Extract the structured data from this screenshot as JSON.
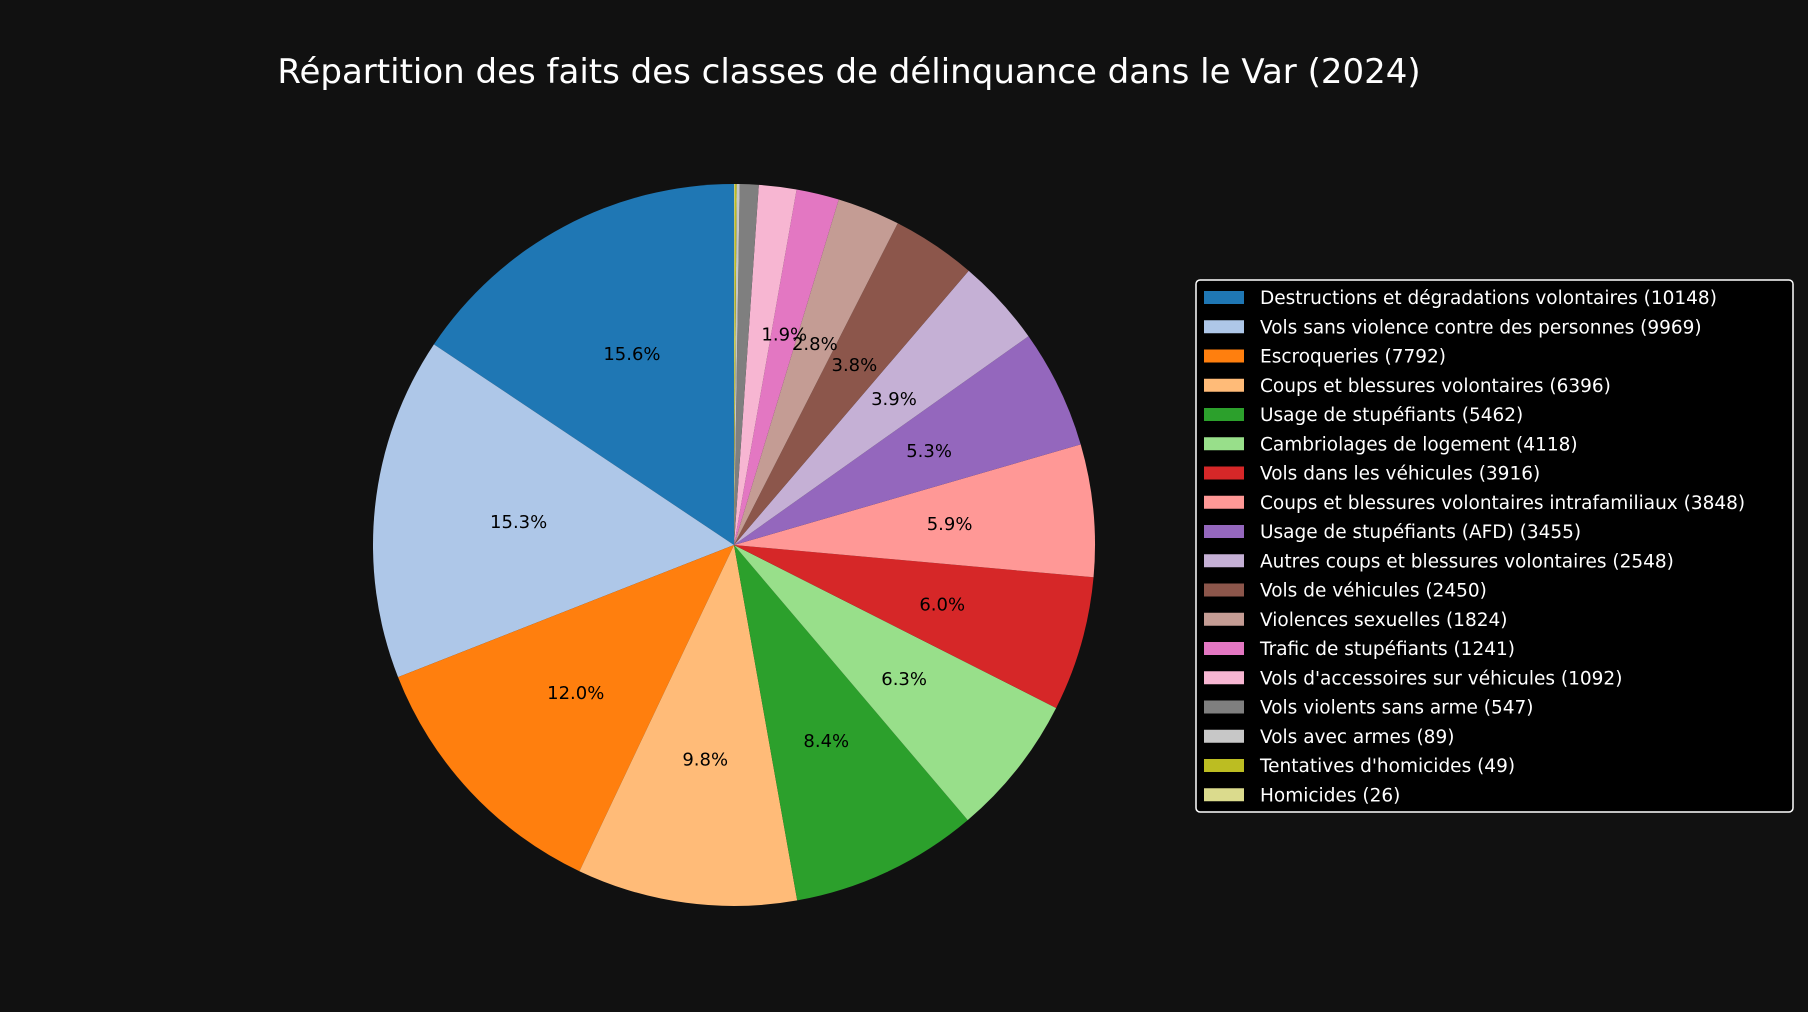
{
  "chart_data": {
    "type": "pie",
    "title": "Répartition des faits des classes de délinquance dans le Var (2024)",
    "start_angle_deg": 90,
    "direction": "counterclockwise",
    "pct_label_threshold_percent": 1.8,
    "legend_placement": "right",
    "slices": [
      {
        "label": "Destructions et dégradations volontaires (10148)",
        "value": 10148,
        "pct": "15.6%",
        "color": "#1f77b4"
      },
      {
        "label": "Vols sans violence contre des personnes (9969)",
        "value": 9969,
        "pct": "15.3%",
        "color": "#aec7e8"
      },
      {
        "label": "Escroqueries (7792)",
        "value": 7792,
        "pct": "12.0%",
        "color": "#ff7f0e"
      },
      {
        "label": "Coups et blessures volontaires (6396)",
        "value": 6396,
        "pct": "9.8%",
        "color": "#ffbb78"
      },
      {
        "label": "Usage de stupéfiants (5462)",
        "value": 5462,
        "pct": "8.4%",
        "color": "#2ca02c"
      },
      {
        "label": "Cambriolages de logement (4118)",
        "value": 4118,
        "pct": "6.3%",
        "color": "#98df8a"
      },
      {
        "label": "Vols dans les véhicules (3916)",
        "value": 3916,
        "pct": "6.0%",
        "color": "#d62728"
      },
      {
        "label": "Coups et blessures volontaires intrafamiliaux (3848)",
        "value": 3848,
        "pct": "5.9%",
        "color": "#ff9896"
      },
      {
        "label": "Usage de stupéfiants (AFD) (3455)",
        "value": 3455,
        "pct": "5.3%",
        "color": "#9467bd"
      },
      {
        "label": "Autres coups et blessures volontaires (2548)",
        "value": 2548,
        "pct": "3.9%",
        "color": "#c5b0d5"
      },
      {
        "label": "Vols de véhicules (2450)",
        "value": 2450,
        "pct": "3.8%",
        "color": "#8c564b"
      },
      {
        "label": "Violences sexuelles (1824)",
        "value": 1824,
        "pct": "2.8%",
        "color": "#c49c94"
      },
      {
        "label": "Trafic de stupéfiants (1241)",
        "value": 1241,
        "pct": "1.9%",
        "color": "#e377c2"
      },
      {
        "label": "Vols d'accessoires sur véhicules (1092)",
        "value": 1092,
        "pct": "",
        "color": "#f7b6d2"
      },
      {
        "label": "Vols violents sans arme (547)",
        "value": 547,
        "pct": "",
        "color": "#7f7f7f"
      },
      {
        "label": "Vols avec armes (89)",
        "value": 89,
        "pct": "",
        "color": "#c7c7c7"
      },
      {
        "label": "Tentatives d'homicides (49)",
        "value": 49,
        "pct": "",
        "color": "#bcbd22"
      },
      {
        "label": "Homicides (26)",
        "value": 26,
        "pct": "",
        "color": "#dbdb8d"
      }
    ]
  }
}
